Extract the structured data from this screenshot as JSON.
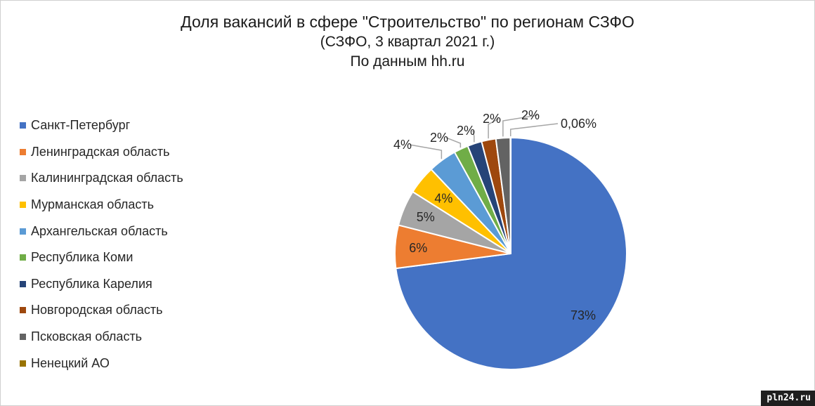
{
  "chart_data": {
    "type": "pie",
    "title": "Доля вакансий в сфере \"Строительство\" по регионам СЗФО",
    "subtitle_lines": [
      "(СЗФО, 3 квартал 2021 г.)",
      "По данным hh.ru"
    ],
    "legend_position": "left",
    "slices": [
      {
        "name": "Санкт-Петербург",
        "value": 73,
        "label": "73%",
        "color": "#4472C4"
      },
      {
        "name": "Ленинградская область",
        "value": 6,
        "label": "6%",
        "color": "#ED7D31"
      },
      {
        "name": "Калининградская область",
        "value": 5,
        "label": "5%",
        "color": "#A5A5A5"
      },
      {
        "name": "Мурманская область",
        "value": 4,
        "label": "4%",
        "color": "#FFC000"
      },
      {
        "name": "Архангельская область",
        "value": 4,
        "label": "4%",
        "color": "#5B9BD5"
      },
      {
        "name": "Республика Коми",
        "value": 2,
        "label": "2%",
        "color": "#70AD47"
      },
      {
        "name": "Республика Карелия",
        "value": 2,
        "label": "2%",
        "color": "#264478"
      },
      {
        "name": "Новгородская область",
        "value": 2,
        "label": "2%",
        "color": "#9E480E"
      },
      {
        "name": "Псковская область",
        "value": 2,
        "label": "2%",
        "color": "#636363"
      },
      {
        "name": "Ненецкий АО",
        "value": 0.06,
        "label": "0,06%",
        "color": "#997300"
      }
    ]
  },
  "watermark": "pln24.ru"
}
